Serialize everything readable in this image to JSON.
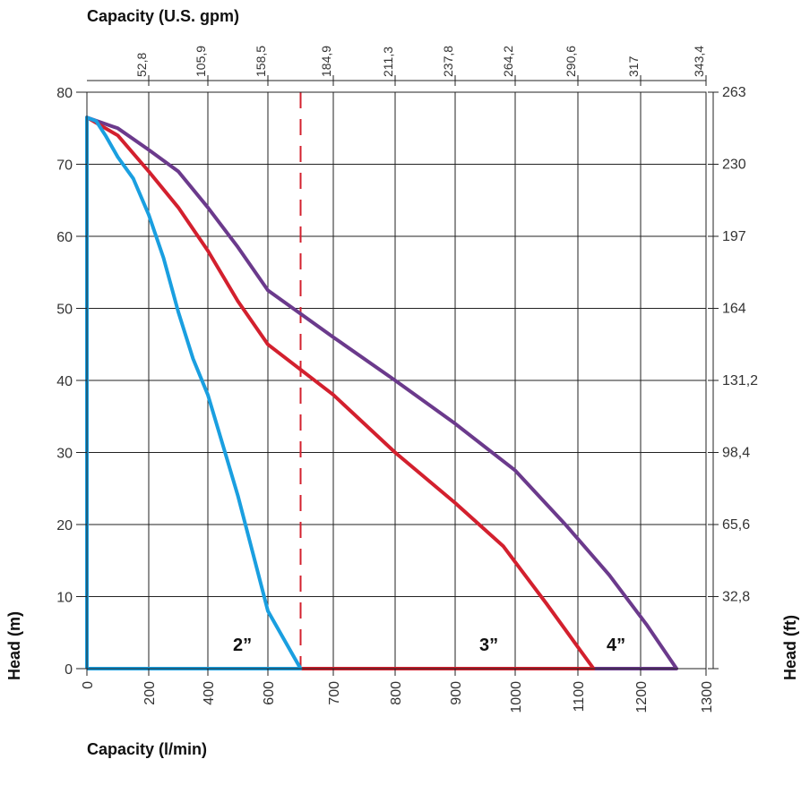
{
  "chart_data": {
    "type": "line",
    "title": "",
    "xlabel": "Capacity (l/min)",
    "x2label": "Capacity (U.S. gpm)",
    "ylabel": "Head (m)",
    "y2label": "Head (ft)",
    "xlim": [
      0,
      1300
    ],
    "ylim": [
      0,
      80
    ],
    "grid": true,
    "legend": "none",
    "x_ticks": [
      {
        "value": 0,
        "label": "0"
      },
      {
        "value": 200,
        "label": "200"
      },
      {
        "value": 400,
        "label": "400"
      },
      {
        "value": 600,
        "label": "600"
      },
      {
        "value": 700,
        "label": "700"
      },
      {
        "value": 800,
        "label": "800"
      },
      {
        "value": 900,
        "label": "900"
      },
      {
        "value": 1000,
        "label": "1000"
      },
      {
        "value": 1100,
        "label": "1100"
      },
      {
        "value": 1200,
        "label": "1200"
      },
      {
        "value": 1300,
        "label": "1300"
      }
    ],
    "x2_ticks": [
      {
        "value": 200,
        "label": "52,8"
      },
      {
        "value": 400,
        "label": "105,9"
      },
      {
        "value": 600,
        "label": "158,5"
      },
      {
        "value": 700,
        "label": "184,9"
      },
      {
        "value": 800,
        "label": "211,3"
      },
      {
        "value": 900,
        "label": "237,8"
      },
      {
        "value": 1000,
        "label": "264,2"
      },
      {
        "value": 1100,
        "label": "290,6"
      },
      {
        "value": 1200,
        "label": "317"
      },
      {
        "value": 1300,
        "label": "343,4"
      }
    ],
    "y_ticks": [
      {
        "value": 0,
        "label": "0"
      },
      {
        "value": 10,
        "label": "10"
      },
      {
        "value": 20,
        "label": "20"
      },
      {
        "value": 30,
        "label": "30"
      },
      {
        "value": 40,
        "label": "40"
      },
      {
        "value": 50,
        "label": "50"
      },
      {
        "value": 60,
        "label": "60"
      },
      {
        "value": 70,
        "label": "70"
      },
      {
        "value": 80,
        "label": "80"
      }
    ],
    "y2_ticks": [
      {
        "value": 10,
        "label": "32,8"
      },
      {
        "value": 20,
        "label": "65,6"
      },
      {
        "value": 30,
        "label": "98,4"
      },
      {
        "value": 40,
        "label": "131,2"
      },
      {
        "value": 50,
        "label": "164"
      },
      {
        "value": 60,
        "label": "197"
      },
      {
        "value": 70,
        "label": "230"
      },
      {
        "value": 80,
        "label": "263"
      }
    ],
    "reference_line": {
      "x": 650,
      "color": "#d3202e",
      "style": "dashed"
    },
    "series": [
      {
        "name": "2”",
        "color": "#1a9fe0",
        "points": [
          [
            0,
            0
          ],
          [
            0,
            76.5
          ],
          [
            30,
            76
          ],
          [
            60,
            74
          ],
          [
            100,
            71
          ],
          [
            150,
            68
          ],
          [
            200,
            63
          ],
          [
            250,
            57
          ],
          [
            300,
            49.5
          ],
          [
            350,
            43
          ],
          [
            400,
            38
          ],
          [
            450,
            31
          ],
          [
            500,
            24
          ],
          [
            550,
            16
          ],
          [
            600,
            8
          ],
          [
            650,
            0
          ],
          [
            0,
            0
          ]
        ]
      },
      {
        "name": "3”",
        "color": "#d3202e",
        "points": [
          [
            0,
            0
          ],
          [
            0,
            76.5
          ],
          [
            100,
            74
          ],
          [
            200,
            69
          ],
          [
            300,
            64
          ],
          [
            400,
            58
          ],
          [
            500,
            51
          ],
          [
            600,
            45
          ],
          [
            700,
            38
          ],
          [
            800,
            30
          ],
          [
            900,
            23
          ],
          [
            980,
            17
          ],
          [
            1050,
            9
          ],
          [
            1100,
            3
          ],
          [
            1125,
            0
          ],
          [
            0,
            0
          ]
        ]
      },
      {
        "name": "4”",
        "color": "#6b3a8c",
        "points": [
          [
            0,
            0
          ],
          [
            0,
            76.5
          ],
          [
            100,
            75
          ],
          [
            200,
            72
          ],
          [
            300,
            69
          ],
          [
            400,
            64
          ],
          [
            500,
            58.5
          ],
          [
            600,
            52.5
          ],
          [
            700,
            46
          ],
          [
            800,
            40
          ],
          [
            900,
            34
          ],
          [
            1000,
            27.5
          ],
          [
            1080,
            20
          ],
          [
            1150,
            13
          ],
          [
            1210,
            6
          ],
          [
            1255,
            0
          ],
          [
            0,
            0
          ]
        ]
      }
    ]
  }
}
